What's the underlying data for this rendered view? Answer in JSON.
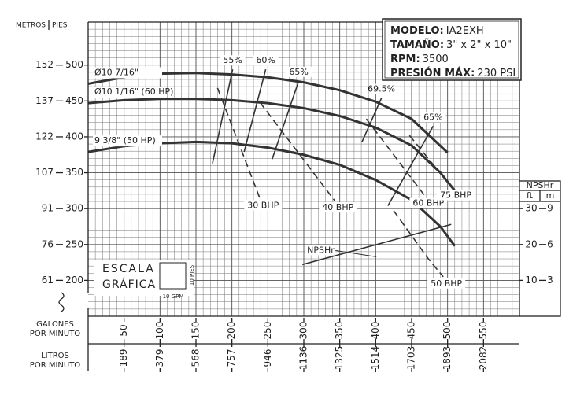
{
  "chart_data": {
    "type": "line",
    "y_axis_title": "PIES",
    "y2_axis_title": "METROS",
    "x_axis_title": "GALONES POR MINUTO",
    "x2_axis_title": "LITROS POR MINUTO",
    "xlim": [
      0,
      600
    ],
    "xticks": [
      50,
      100,
      150,
      200,
      250,
      300,
      350,
      400,
      450,
      500,
      550
    ],
    "x2ticks": [
      {
        "value": 50,
        "label": "189"
      },
      {
        "value": 100,
        "label": "379"
      },
      {
        "value": 150,
        "label": "568"
      },
      {
        "value": 200,
        "label": "757"
      },
      {
        "value": 250,
        "label": "946"
      },
      {
        "value": 300,
        "label": "1136"
      },
      {
        "value": 350,
        "label": "1325"
      },
      {
        "value": 400,
        "label": "1514"
      },
      {
        "value": 450,
        "label": "1703"
      },
      {
        "value": 500,
        "label": "1893"
      },
      {
        "value": 550,
        "label": "2082"
      }
    ],
    "ylim": [
      150,
      560
    ],
    "yticks": [
      200,
      250,
      300,
      350,
      400,
      450,
      500
    ],
    "y2ticks": [
      {
        "value": 200,
        "label": "61"
      },
      {
        "value": 250,
        "label": "76"
      },
      {
        "value": 300,
        "label": "91"
      },
      {
        "value": 350,
        "label": "107"
      },
      {
        "value": 400,
        "label": "122"
      },
      {
        "value": 450,
        "label": "137"
      },
      {
        "value": 500,
        "label": "152"
      }
    ],
    "grid": {
      "x_step": 10,
      "y_step": 10
    },
    "series": [
      {
        "name": "Ø10 7/16\"",
        "color": "#333333",
        "x": [
          0,
          50,
          100,
          150,
          200,
          250,
          300,
          350,
          400,
          450,
          500
        ],
        "values": [
          474,
          483,
          488,
          489,
          487,
          483,
          476,
          465,
          449,
          425,
          378
        ]
      },
      {
        "name": "Ø10 1/16\" (60 HP)",
        "color": "#333333",
        "x": [
          0,
          50,
          100,
          150,
          200,
          250,
          300,
          350,
          400,
          450,
          490,
          510
        ],
        "values": [
          447,
          451,
          453,
          453,
          451,
          447,
          440,
          429,
          413,
          388,
          350,
          325
        ]
      },
      {
        "name": "9 3/8\" (50 HP)",
        "color": "#333333",
        "x": [
          0,
          50,
          100,
          150,
          200,
          250,
          300,
          350,
          400,
          450,
          490,
          510
        ],
        "values": [
          379,
          387,
          391,
          393,
          391,
          385,
          375,
          361,
          340,
          312,
          275,
          248
        ]
      }
    ],
    "efficiency": [
      {
        "name": "55%",
        "x": [
          201,
          173
        ],
        "values": [
          494,
          363
        ]
      },
      {
        "name": "60%",
        "x": [
          247,
          217
        ],
        "values": [
          494,
          379
        ]
      },
      {
        "name": "65%",
        "x": [
          293,
          256
        ],
        "values": [
          478,
          369
        ]
      },
      {
        "name": "69.5%",
        "x": [
          408,
          381
        ],
        "values": [
          454,
          393
        ]
      },
      {
        "name": "65%",
        "x": [
          480,
          417
        ],
        "values": [
          415,
          304
        ]
      }
    ],
    "power": [
      {
        "name": "30 BHP",
        "x": [
          180,
          239
        ],
        "values": [
          468,
          314
        ]
      },
      {
        "name": "40 BHP",
        "x": [
          239,
          343
        ],
        "values": [
          448,
          311
        ]
      },
      {
        "name": "50 BHP",
        "x": [
          425,
          474,
          494
        ],
        "values": [
          297,
          229,
          205
        ]
      },
      {
        "name": "60 BHP",
        "x": [
          387,
          469
        ],
        "values": [
          425,
          317
        ]
      },
      {
        "name": "75 BHP",
        "x": [
          447,
          507
        ],
        "values": [
          402,
          328
        ]
      }
    ],
    "npsh": {
      "name": "NPSHr",
      "title": "NPSHr",
      "unit_ft": "ft",
      "unit_m": "m",
      "lim": [
        0,
        82
      ],
      "ticks": [
        10,
        20,
        30
      ],
      "ticks_m": [
        {
          "value": 10,
          "label": "3"
        },
        {
          "value": 20,
          "label": "6"
        },
        {
          "value": 30,
          "label": "9"
        }
      ],
      "x": [
        298,
        505
      ],
      "values": [
        14.4,
        25.6
      ]
    }
  },
  "info": [
    {
      "label": "MODELO:",
      "value": "IA2EXH"
    },
    {
      "label": "TAMAÑO:",
      "value": "3\" x 2\" x 10\""
    },
    {
      "label": "RPM:",
      "value": "3500"
    },
    {
      "label": "PRESIÓN MÁX:",
      "value": "230 PSI"
    }
  ],
  "scale": {
    "line1": "ESCALA",
    "line2": "GRÁFICA",
    "height": "10 PIES",
    "width": "10 GPM"
  }
}
